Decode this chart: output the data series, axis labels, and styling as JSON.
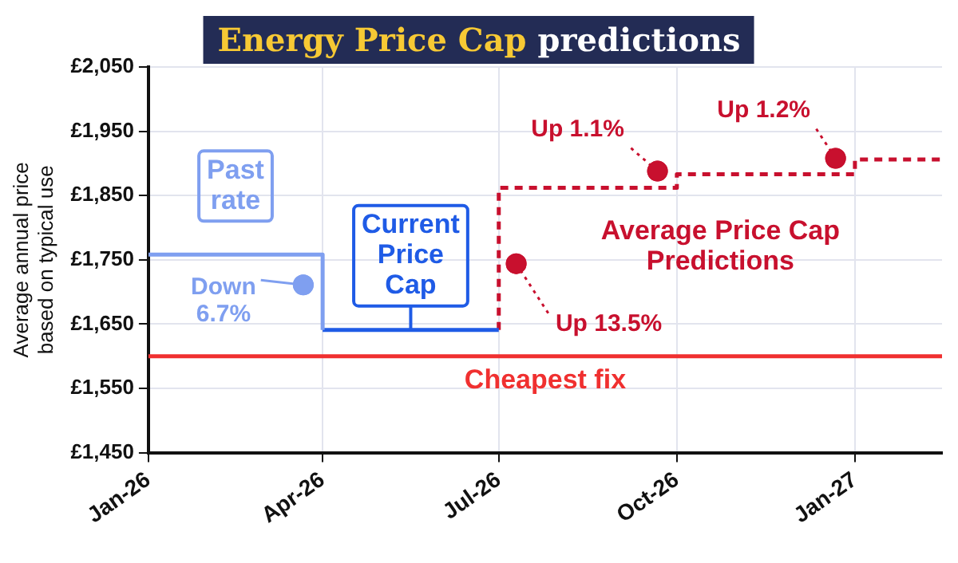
{
  "chart_data": {
    "type": "step",
    "title": "Energy Price Cap predictions",
    "ylabel": "Average annual price\nbased on typical use",
    "xlim": [
      "2026-01-01",
      "2027-02-15"
    ],
    "xticks": [
      {
        "value": "2026-01-01",
        "label": "Jan-26"
      },
      {
        "value": "2026-04-01",
        "label": "Apr-26"
      },
      {
        "value": "2026-07-01",
        "label": "Jul-26"
      },
      {
        "value": "2026-10-01",
        "label": "Oct-26"
      },
      {
        "value": "2027-01-01",
        "label": "Jan-27"
      }
    ],
    "ylim": [
      1450,
      2050
    ],
    "yticks": [
      {
        "value": 1450,
        "label": "£1,450"
      },
      {
        "value": 1550,
        "label": "£1,550"
      },
      {
        "value": 1650,
        "label": "£1,650"
      },
      {
        "value": 1750,
        "label": "£1,750"
      },
      {
        "value": 1850,
        "label": "£1,850"
      },
      {
        "value": 1950,
        "label": "£1,950"
      },
      {
        "value": 2050,
        "label": "£2,050"
      }
    ],
    "grid": true,
    "legend": false,
    "line_style": "solid",
    "series": [
      {
        "name": "Past rate",
        "color": "#7f9ff0",
        "x": [
          "2026-01-01",
          "2026-04-01"
        ],
        "values": [
          1758,
          1641
        ]
      },
      {
        "name": "Current Price Cap",
        "color": "#1f5be6",
        "x": [
          "2026-04-01",
          "2026-07-01"
        ],
        "values": [
          1641,
          1641
        ]
      },
      {
        "name": "Average Price Cap Predictions",
        "color": "#c8102e",
        "line_style": "dashed",
        "x": [
          "2026-07-01",
          "2026-07-01",
          "2026-10-01",
          "2027-01-01",
          "2027-02-15"
        ],
        "values": [
          1641,
          1862,
          1883,
          1906,
          1906
        ]
      },
      {
        "type": "scatter",
        "marker": "circle",
        "colors": [
          "#7f9ff0",
          "#c8102e",
          "#c8102e",
          "#c8102e"
        ],
        "x": [
          "2026-03-22",
          "2026-07-10",
          "2026-09-21",
          "2026-12-22"
        ],
        "values": [
          1711,
          1744,
          1888,
          1908
        ],
        "value_labels": [
          "Down\n6.7%",
          "Up 13.5%",
          "Up 1.1%",
          "Up 1.2%"
        ]
      }
    ],
    "ref_lines": [
      {
        "axis": "y",
        "value": 1600,
        "label": "Cheapest fix",
        "color": "#f03030"
      }
    ]
  }
}
